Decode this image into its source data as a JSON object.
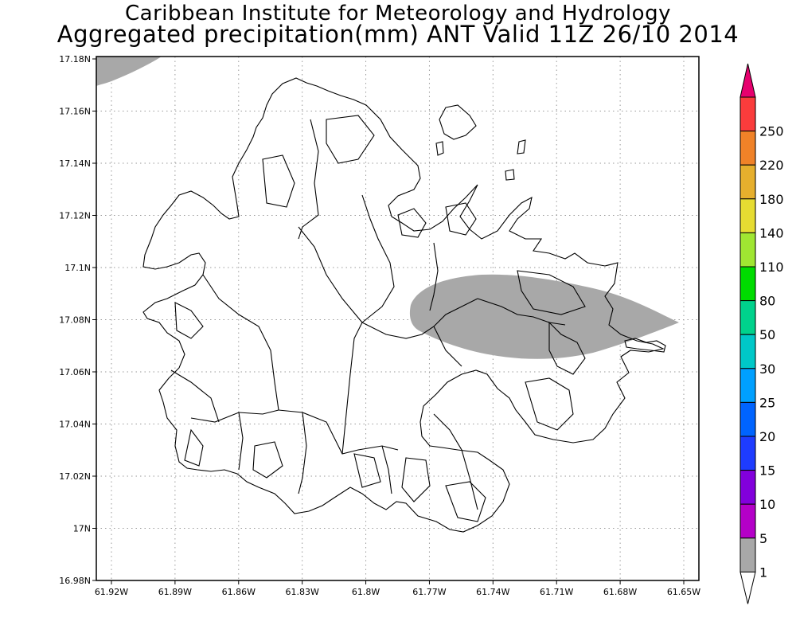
{
  "title_line1": "Caribbean Institute for Meteorology and Hydrology",
  "title_line2": "Aggregated precipitation(mm) ANT Valid 11Z 26/10 2014",
  "map": {
    "lon_range": [
      -61.93,
      -61.65
    ],
    "lat_range": [
      16.98,
      17.18
    ],
    "lon_ticks": [
      "61.92W",
      "61.89W",
      "61.86W",
      "61.83W",
      "61.8W",
      "61.77W",
      "61.74W",
      "61.71W",
      "61.68W",
      "61.65W"
    ],
    "lat_ticks": [
      "17.18N",
      "17.16N",
      "17.14N",
      "17.12N",
      "17.1N",
      "17.08N",
      "17.06N",
      "17.04N",
      "17.02N",
      "17N",
      "16.98N"
    ],
    "gridlines": "dotted",
    "rain_areas": [
      {
        "category": "1-5 mm",
        "color": "#a8a8a8",
        "location": "northwest corner"
      },
      {
        "category": "1-5 mm",
        "color": "#a8a8a8",
        "location": "east band near 17.08N"
      }
    ]
  },
  "colorbar": {
    "labels": [
      "1",
      "5",
      "10",
      "15",
      "20",
      "25",
      "30",
      "50",
      "80",
      "110",
      "140",
      "180",
      "220",
      "250"
    ],
    "colors": [
      "#a8a8a8",
      "#b400c8",
      "#8200dc",
      "#1e3cff",
      "#0064ff",
      "#00a0ff",
      "#00c8c8",
      "#00d28c",
      "#00dc00",
      "#a0e632",
      "#e6dc32",
      "#e6af2d",
      "#f08228",
      "#fa3c3c",
      "#e6006e"
    ]
  }
}
